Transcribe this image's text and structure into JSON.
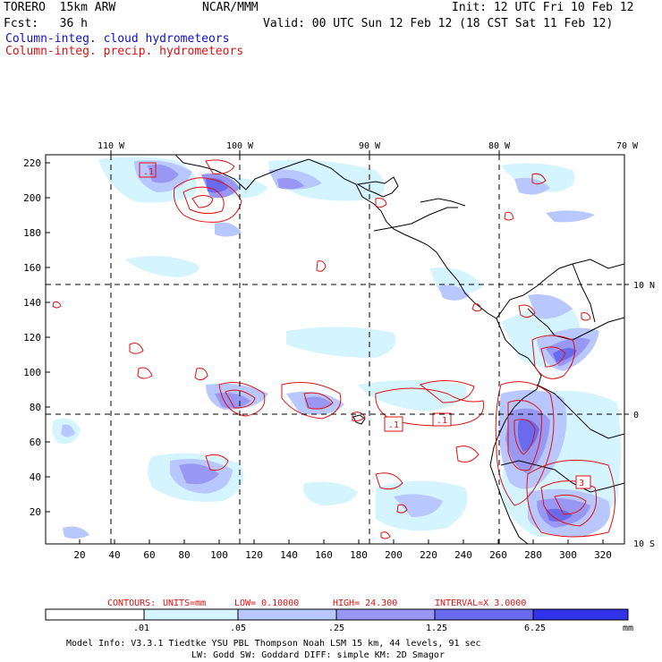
{
  "header": {
    "model": "TORERO  15km ARW",
    "agency": "NCAR/MMM",
    "init": "Init: 12 UTC Fri 10 Feb 12",
    "fcst": "Fcst:   36 h",
    "valid": "Valid: 00 UTC Sun 12 Feb 12 (18 CST Sat 11 Feb 12)",
    "field1": "Column-integ. cloud hydrometeors",
    "field2": "Column-integ. precip. hydrometeors"
  },
  "axes": {
    "top_lon_labels": [
      "110 W",
      "100 W",
      "90 W",
      "80 W",
      "70 W"
    ],
    "right_lat_labels": [
      "10 N",
      "0",
      "10 S"
    ],
    "left_grid_labels": [
      "220",
      "200",
      "180",
      "160",
      "140",
      "120",
      "100",
      "80",
      "60",
      "40",
      "20"
    ],
    "bottom_grid_labels": [
      "20",
      "40",
      "60",
      "80",
      "100",
      "120",
      "140",
      "160",
      "180",
      "200",
      "220",
      "240",
      "260",
      "280",
      "300",
      "320"
    ]
  },
  "contour_info": {
    "contours": "CONTOURS:",
    "units": "UNITS=mm",
    "low": "LOW= 0.10000",
    "high": "HIGH=  24.300",
    "interval": "INTERVAL=X  3.0000"
  },
  "legend": {
    "thresholds": [
      ".01",
      ".05",
      ".25",
      "1.25",
      "6.25"
    ],
    "unit": "mm",
    "colors": [
      "#ffffff",
      "#d4f4ff",
      "#b8c8ff",
      "#9898f4",
      "#6a6aee",
      "#3232e8"
    ]
  },
  "contour_labels": [
    ".1",
    ".1",
    ".1",
    "3"
  ],
  "footer": {
    "line1": "Model Info: V3.3.1   Tiedtke YSU PBL  Thompson    Noah LSM  15 km,   44 levels,   91 sec",
    "line2": "LW: Godd SW: Goddard DIFF: simple KM: 2D Smagor"
  }
}
